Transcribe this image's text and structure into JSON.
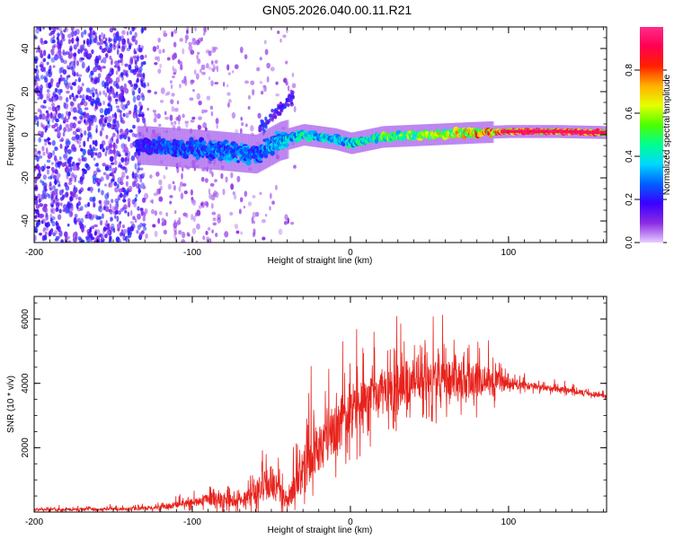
{
  "title": "GN05.2026.040.00.11.R21",
  "chart_data": [
    {
      "type": "heatmap",
      "xlabel": "Height of straight line (km)",
      "ylabel": "Frequency (Hz)",
      "xlim": [
        -200,
        162
      ],
      "ylim": [
        -50,
        50
      ],
      "xticks": [
        -200,
        -100,
        0,
        100
      ],
      "yticks": [
        -40,
        -20,
        0,
        20,
        40
      ],
      "colorbar": {
        "label": "Normalized spectral amplitude",
        "range": [
          0,
          1
        ],
        "ticks": [
          0.0,
          0.2,
          0.4,
          0.6,
          0.8
        ],
        "colors": [
          "#e6ccff",
          "#8a2be2",
          "#3a00ff",
          "#0060ff",
          "#00d8ff",
          "#00ff90",
          "#4cff00",
          "#e6ff00",
          "#ffb000",
          "#ff2000",
          "#ff0050",
          "#ff2b8a"
        ]
      },
      "ridge": {
        "x": [
          -130,
          -110,
          -90,
          -75,
          -60,
          -45,
          -30,
          -10,
          0,
          20,
          50,
          80,
          100,
          130,
          162
        ],
        "freq": [
          -5,
          -6,
          -7,
          -8,
          -9,
          -3,
          0,
          -2,
          -4,
          -1,
          0,
          1,
          1.5,
          1.5,
          1
        ],
        "amplitude": [
          0.25,
          0.3,
          0.3,
          0.35,
          0.3,
          0.4,
          0.45,
          0.4,
          0.45,
          0.55,
          0.65,
          0.8,
          0.9,
          0.95,
          0.85
        ]
      }
    },
    {
      "type": "line",
      "xlabel": "Height of straight line (km)",
      "ylabel": "SNR (10 * v/v)",
      "xlim": [
        -200,
        162
      ],
      "ylim": [
        0,
        6700
      ],
      "xticks": [
        -200,
        -100,
        0,
        100
      ],
      "yticks": [
        2000,
        4000,
        6000
      ],
      "series": [
        {
          "name": "SNR",
          "color": "#e8221c",
          "x": [
            -200,
            -180,
            -160,
            -140,
            -120,
            -100,
            -90,
            -80,
            -70,
            -60,
            -50,
            -45,
            -40,
            -30,
            -20,
            -10,
            0,
            10,
            20,
            30,
            40,
            50,
            60,
            70,
            80,
            90,
            100,
            110,
            120,
            130,
            140,
            150,
            162
          ],
          "y": [
            80,
            80,
            90,
            100,
            150,
            300,
            420,
            380,
            330,
            600,
            900,
            700,
            300,
            1300,
            1900,
            2600,
            3000,
            3450,
            3700,
            3800,
            4000,
            4050,
            4100,
            4100,
            4100,
            4050,
            3980,
            3940,
            3880,
            3820,
            3760,
            3700,
            3600
          ],
          "spread": [
            90,
            90,
            100,
            110,
            150,
            260,
            450,
            450,
            350,
            800,
            1300,
            1000,
            500,
            1400,
            1600,
            1700,
            1700,
            1600,
            1500,
            1500,
            1400,
            1350,
            1300,
            1300,
            1200,
            900,
            400,
            250,
            200,
            180,
            170,
            160,
            150
          ]
        }
      ]
    }
  ]
}
